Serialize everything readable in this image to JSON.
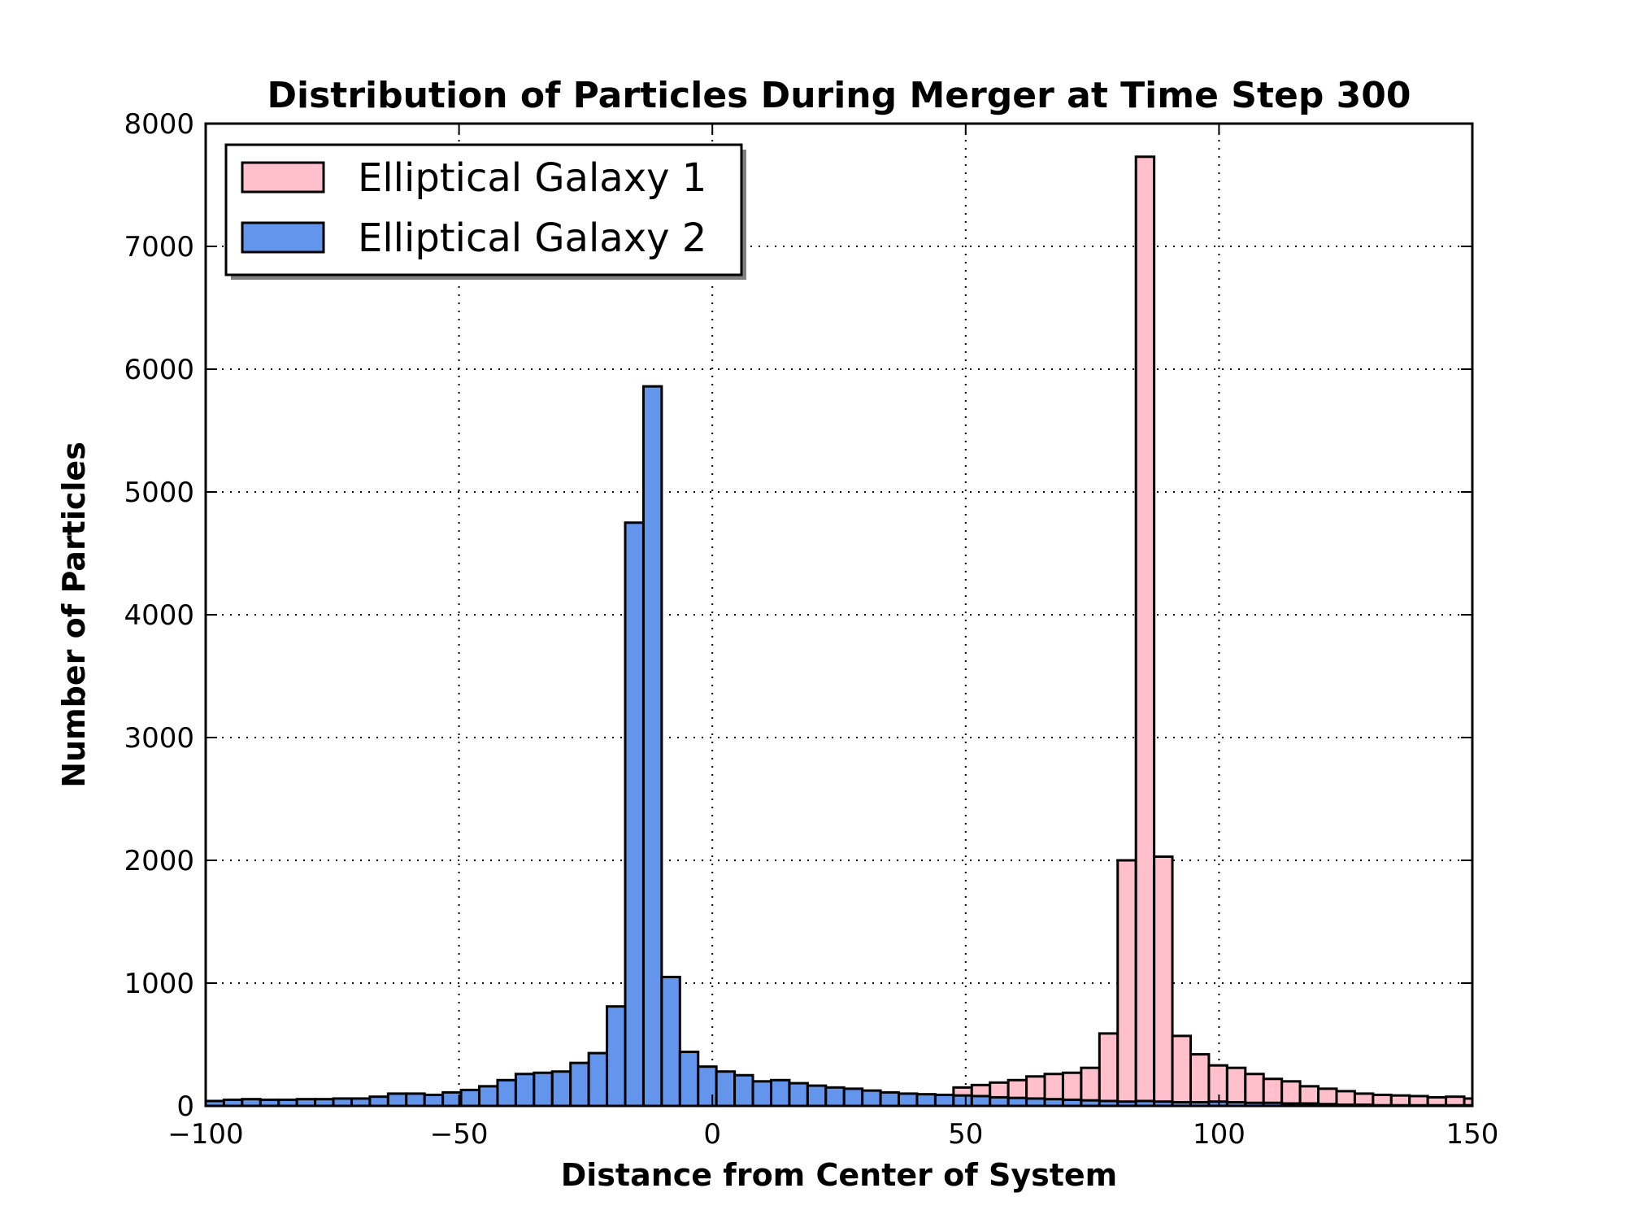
{
  "chart_data": {
    "type": "bar",
    "title": "Distribution of Particles During Merger at Time Step 300",
    "xlabel": "Distance from Center of System",
    "ylabel": "Number of Particles",
    "xlim": [
      -100,
      150
    ],
    "ylim": [
      0,
      8000
    ],
    "xticks": [
      -100,
      -50,
      0,
      50,
      100,
      150
    ],
    "xtick_labels": [
      "−100",
      "−50",
      "0",
      "50",
      "100",
      "150"
    ],
    "yticks": [
      0,
      1000,
      2000,
      3000,
      4000,
      5000,
      6000,
      7000,
      8000
    ],
    "ytick_labels": [
      "0",
      "1000",
      "2000",
      "3000",
      "4000",
      "5000",
      "6000",
      "7000",
      "8000"
    ],
    "grid": true,
    "legend_position": "top-left",
    "bin_width": 3.6,
    "bin_start": -100,
    "series": [
      {
        "name": "Elliptical Galaxy 1",
        "color": "#ffc0cb",
        "values": [
          0,
          0,
          0,
          0,
          0,
          0,
          0,
          0,
          0,
          0,
          0,
          0,
          0,
          0,
          0,
          0,
          0,
          0,
          0,
          0,
          0,
          0,
          0,
          0,
          0,
          0,
          0,
          0,
          0,
          0,
          0,
          0,
          0,
          0,
          0,
          0,
          0,
          0,
          0,
          20,
          80,
          150,
          170,
          190,
          210,
          240,
          260,
          270,
          310,
          590,
          2000,
          7730,
          2030,
          570,
          420,
          330,
          310,
          260,
          220,
          200,
          160,
          140,
          120,
          100,
          90,
          85,
          80,
          70,
          75,
          60,
          55,
          60,
          45,
          60
        ]
      },
      {
        "name": "Elliptical Galaxy 2",
        "color": "#6495ed",
        "values": [
          40,
          50,
          55,
          50,
          50,
          55,
          55,
          60,
          60,
          75,
          100,
          100,
          90,
          110,
          130,
          160,
          210,
          260,
          270,
          280,
          350,
          430,
          810,
          4750,
          5860,
          1050,
          440,
          320,
          280,
          250,
          200,
          210,
          185,
          165,
          150,
          140,
          125,
          110,
          100,
          95,
          90,
          85,
          80,
          70,
          65,
          60,
          55,
          50,
          45,
          40,
          35,
          40,
          35,
          30,
          30,
          35,
          30,
          25,
          25,
          20,
          20,
          15,
          10,
          10,
          5,
          5,
          5,
          5,
          5,
          5,
          5,
          5,
          5,
          5
        ]
      }
    ]
  }
}
